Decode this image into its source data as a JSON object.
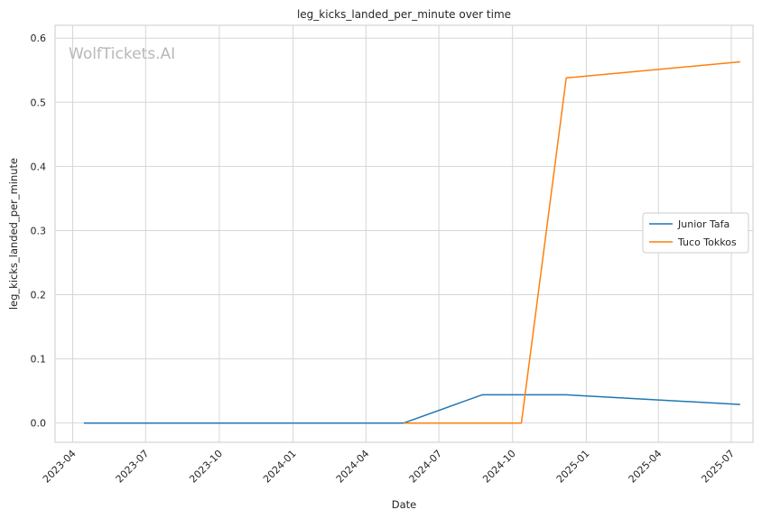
{
  "chart_data": {
    "type": "line",
    "title": "leg_kicks_landed_per_minute over time",
    "xlabel": "Date",
    "ylabel": "leg_kicks_landed_per_minute",
    "watermark": "WolfTickets.AI",
    "x_ticks": [
      "2023-04",
      "2023-07",
      "2023-10",
      "2024-01",
      "2024-04",
      "2024-07",
      "2024-10",
      "2025-01",
      "2025-04",
      "2025-07"
    ],
    "y_ticks": [
      "0.0",
      "0.1",
      "0.2",
      "0.3",
      "0.4",
      "0.5",
      "0.6"
    ],
    "xlim": [
      "2023-03-10",
      "2025-07-28"
    ],
    "ylim": [
      -0.03,
      0.62
    ],
    "grid": true,
    "legend_position": "center-right",
    "series": [
      {
        "name": "Junior Tafa",
        "color": "#1f77b4",
        "points": [
          {
            "x": "2023-04-15",
            "y": 0.0
          },
          {
            "x": "2024-05-18",
            "y": 0.0
          },
          {
            "x": "2024-08-24",
            "y": 0.044
          },
          {
            "x": "2024-12-07",
            "y": 0.044
          },
          {
            "x": "2025-07-12",
            "y": 0.029
          }
        ]
      },
      {
        "name": "Tuco Tokkos",
        "color": "#ff7f0e",
        "points": [
          {
            "x": "2024-05-18",
            "y": 0.0
          },
          {
            "x": "2024-10-12",
            "y": 0.0
          },
          {
            "x": "2024-12-07",
            "y": 0.538
          },
          {
            "x": "2025-07-12",
            "y": 0.563
          }
        ]
      }
    ]
  }
}
